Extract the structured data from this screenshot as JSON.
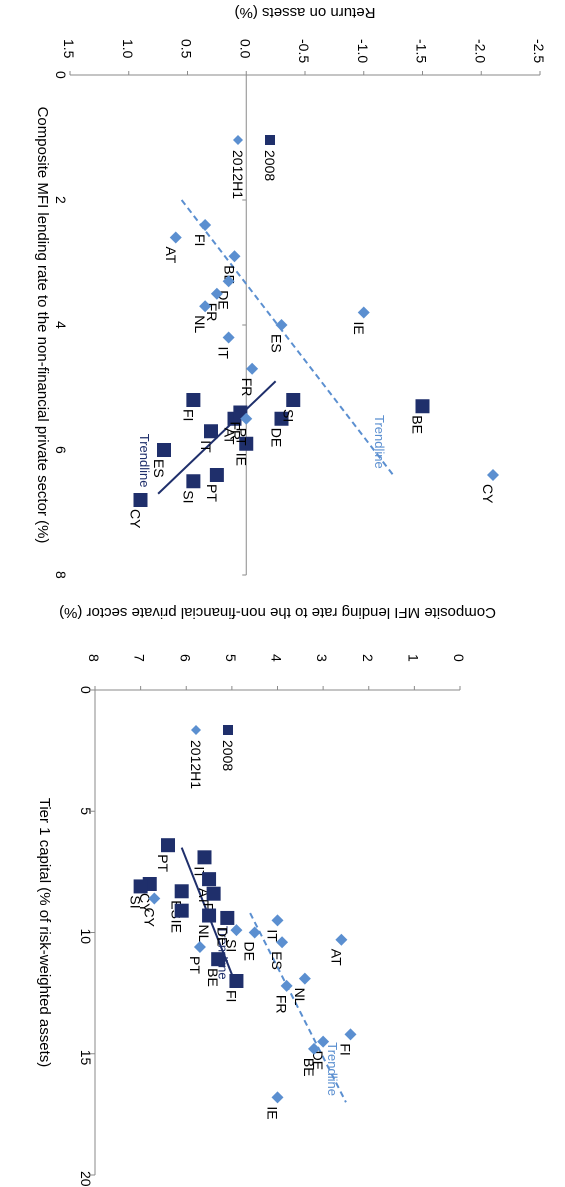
{
  "colors": {
    "s2008": "#1f2f6b",
    "s2012": "#5b8fd0",
    "axis": "#8a8a8a"
  },
  "chart_data": [
    {
      "type": "scatter",
      "rotation": "clockwise-90",
      "xlabel": "Composite MFI lending rate to the non-financial private sector (%)",
      "ylabel": "Return on assets (%)",
      "xlim": [
        0,
        8
      ],
      "ylim": [
        -2.5,
        1.5
      ],
      "xticks": [
        "0",
        "2",
        "4",
        "6",
        "8"
      ],
      "yticks": [
        "-2.5",
        "-2.0",
        "-1.5",
        "-1.0",
        "-0.5",
        "0.0",
        "0.5",
        "1.0",
        "1.5"
      ],
      "legend": [
        "2008",
        "2012H1"
      ],
      "series": [
        {
          "name": "2008",
          "marker": "square",
          "points": [
            {
              "label": "CY",
              "x": 6.8,
              "y": 0.9
            },
            {
              "label": "ES",
              "x": 6.0,
              "y": 0.7
            },
            {
              "label": "SI",
              "x": 6.5,
              "y": 0.45
            },
            {
              "label": "FI",
              "x": 5.2,
              "y": 0.45
            },
            {
              "label": "IT",
              "x": 5.7,
              "y": 0.3
            },
            {
              "label": "AT",
              "x": 5.5,
              "y": 0.1
            },
            {
              "label": "FR",
              "x": 5.4,
              "y": 0.05
            },
            {
              "label": "PT",
              "x": 6.4,
              "y": 0.25
            },
            {
              "label": "IE",
              "x": 5.9,
              "y": 0.0
            },
            {
              "label": "DE",
              "x": 5.5,
              "y": -0.3
            },
            {
              "label": "SI",
              "x": 5.2,
              "y": -0.4
            },
            {
              "label": "BE",
              "x": 5.3,
              "y": -1.5
            }
          ]
        },
        {
          "name": "2012H1",
          "marker": "diamond",
          "points": [
            {
              "label": "AT",
              "x": 2.6,
              "y": 0.6
            },
            {
              "label": "FI",
              "x": 2.4,
              "y": 0.35
            },
            {
              "label": "BE",
              "x": 2.9,
              "y": 0.1
            },
            {
              "label": "DE",
              "x": 3.3,
              "y": 0.15
            },
            {
              "label": "FR",
              "x": 3.5,
              "y": 0.25
            },
            {
              "label": "NL",
              "x": 3.7,
              "y": 0.35
            },
            {
              "label": "IT",
              "x": 4.2,
              "y": 0.15
            },
            {
              "label": "ES",
              "x": 4.0,
              "y": -0.3
            },
            {
              "label": "IE",
              "x": 3.8,
              "y": -1.0
            },
            {
              "label": "FR",
              "x": 4.7,
              "y": -0.05
            },
            {
              "label": "PT",
              "x": 5.5,
              "y": 0.0
            },
            {
              "label": "CY",
              "x": 6.4,
              "y": -2.1
            }
          ]
        }
      ],
      "trendlines": [
        {
          "series": "2008",
          "label": "Trendline",
          "from": [
            4.9,
            -0.25
          ],
          "to": [
            6.7,
            0.75
          ]
        },
        {
          "series": "2012H1",
          "label": "Trendline",
          "from": [
            2.0,
            0.55
          ],
          "to": [
            6.4,
            -1.25
          ]
        }
      ]
    },
    {
      "type": "scatter",
      "rotation": "clockwise-90",
      "xlabel": "Tier 1 capital (% of risk-weighted assets)",
      "ylabel": "Composite MFI lending rate to the non-financial private sector (%)",
      "xlim": [
        0,
        20
      ],
      "ylim": [
        0,
        8
      ],
      "xticks": [
        "0",
        "5",
        "10",
        "15",
        "20"
      ],
      "yticks": [
        "0",
        "1",
        "2",
        "3",
        "4",
        "5",
        "6",
        "7",
        "8"
      ],
      "legend": [
        "2008",
        "2012H1"
      ],
      "series": [
        {
          "name": "2008",
          "marker": "square",
          "points": [
            {
              "label": "PT",
              "x": 6.4,
              "y": 6.4
            },
            {
              "label": "IT",
              "x": 6.9,
              "y": 5.6
            },
            {
              "label": "CY",
              "x": 8.0,
              "y": 6.8
            },
            {
              "label": "AT",
              "x": 7.8,
              "y": 5.5
            },
            {
              "label": "FR",
              "x": 8.4,
              "y": 5.4
            },
            {
              "label": "ES",
              "x": 8.3,
              "y": 6.1
            },
            {
              "label": "SI",
              "x": 8.1,
              "y": 7.0
            },
            {
              "label": "DE",
              "x": 9.4,
              "y": 5.1
            },
            {
              "label": "NL",
              "x": 9.3,
              "y": 5.5
            },
            {
              "label": "IE",
              "x": 9.1,
              "y": 6.1
            },
            {
              "label": "BE",
              "x": 11.1,
              "y": 5.3
            },
            {
              "label": "FI",
              "x": 12.0,
              "y": 4.9
            }
          ]
        },
        {
          "name": "2012H1",
          "marker": "diamond",
          "points": [
            {
              "label": "CY",
              "x": 8.6,
              "y": 6.7
            },
            {
              "label": "PT",
              "x": 10.6,
              "y": 5.7
            },
            {
              "label": "SI",
              "x": 9.9,
              "y": 4.9
            },
            {
              "label": "DE",
              "x": 10.0,
              "y": 4.5
            },
            {
              "label": "IT",
              "x": 9.5,
              "y": 4.0
            },
            {
              "label": "ES",
              "x": 10.4,
              "y": 3.9
            },
            {
              "label": "AT",
              "x": 10.3,
              "y": 2.6
            },
            {
              "label": "FR",
              "x": 12.2,
              "y": 3.8
            },
            {
              "label": "NL",
              "x": 11.9,
              "y": 3.4
            },
            {
              "label": "DE",
              "x": 14.5,
              "y": 3.0
            },
            {
              "label": "BE",
              "x": 14.8,
              "y": 3.2
            },
            {
              "label": "FI",
              "x": 14.2,
              "y": 2.4
            },
            {
              "label": "IE",
              "x": 16.8,
              "y": 4.0
            }
          ]
        }
      ],
      "trendlines": [
        {
          "series": "2008",
          "label": "Trendline",
          "from": [
            6.5,
            6.1
          ],
          "to": [
            12.2,
            4.9
          ]
        },
        {
          "series": "2012H1",
          "label": "Trendline",
          "from": [
            9.2,
            4.6
          ],
          "to": [
            17.0,
            2.5
          ]
        }
      ]
    }
  ]
}
